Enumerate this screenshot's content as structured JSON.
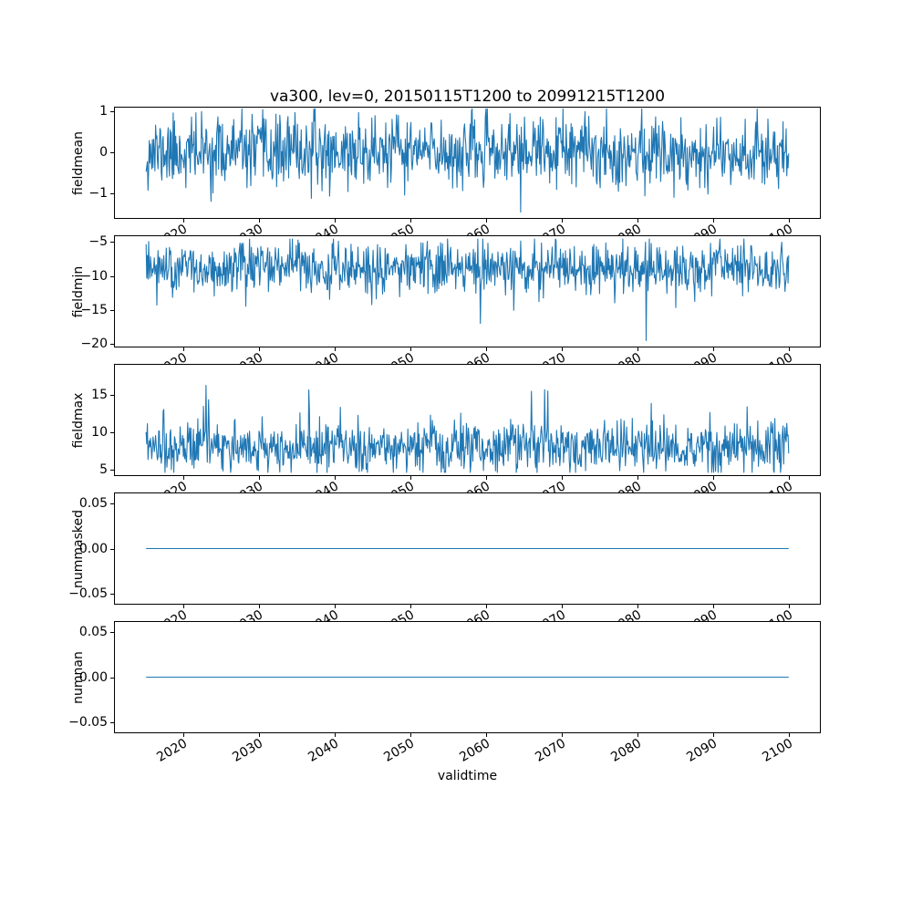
{
  "figure": {
    "title": "va300, lev=0, 20150115T1200 to 20991215T1200",
    "xlabel": "validtime",
    "background_color": "#ffffff",
    "axes_edge_color": "#000000",
    "line_color": "#1f77b4"
  },
  "chart_data": {
    "type": "line",
    "title": "va300, lev=0, 20150115T1200 to 20991215T1200",
    "xlabel": "validtime",
    "grid": false,
    "legend": null,
    "x_start": 2015.042,
    "x_end": 2099.958,
    "x_points": 1020,
    "x_interval_years": 0.0833,
    "xlim": [
      2010.8,
      2104.2
    ],
    "x_ticks": [
      2020,
      2030,
      2040,
      2050,
      2060,
      2070,
      2080,
      2090,
      2100
    ],
    "x_tick_labels": [
      "2020",
      "2030",
      "2040",
      "2050",
      "2060",
      "2070",
      "2080",
      "2090",
      "2100"
    ],
    "subplots": [
      {
        "ylabel": "fieldmean",
        "ylim": [
          -1.62,
          1.1
        ],
        "yticks": [
          1,
          0,
          -1
        ],
        "ytick_labels": [
          "1",
          "0",
          "−1"
        ],
        "series": {
          "kind": "noise",
          "mean": 0.0,
          "sd": 0.42,
          "clip_min": -1.55,
          "clip_max": 1.05,
          "spike_prob": 0,
          "spike_base": 0,
          "spike_range": 0,
          "spike_sign": 1,
          "seed": 11
        }
      },
      {
        "ylabel": "fieldmin",
        "ylim": [
          -20.5,
          -4.0
        ],
        "yticks": [
          -5,
          -10,
          -15,
          -20
        ],
        "ytick_labels": [
          "−5",
          "−10",
          "−15",
          "−20"
        ],
        "series": {
          "kind": "noise",
          "mean": -9.0,
          "sd": 1.85,
          "clip_min": -19.6,
          "clip_max": -4.55,
          "spike_prob": 0.006,
          "spike_base": 2.5,
          "spike_range": 5,
          "spike_sign": -1,
          "seed": 23
        }
      },
      {
        "ylabel": "fieldmax",
        "ylim": [
          4.1,
          19.2
        ],
        "yticks": [
          5,
          10,
          15
        ],
        "ytick_labels": [
          "5",
          "10",
          "15"
        ],
        "series": {
          "kind": "noise",
          "mean": 8.0,
          "sd": 1.75,
          "clip_min": 4.6,
          "clip_max": 18.5,
          "spike_prob": 0.02,
          "spike_base": 2.0,
          "spike_range": 6.0,
          "spike_sign": 1,
          "seed": 37
        }
      },
      {
        "ylabel": "nummasked",
        "ylim": [
          -0.0625,
          0.0625
        ],
        "yticks": [
          0.05,
          0,
          -0.05
        ],
        "ytick_labels": [
          "0.05",
          "0.00",
          "−0.05"
        ],
        "series": {
          "kind": "flat",
          "value": 0.0
        }
      },
      {
        "ylabel": "numnan",
        "ylim": [
          -0.0625,
          0.0625
        ],
        "yticks": [
          0.05,
          0,
          -0.05
        ],
        "ytick_labels": [
          "0.05",
          "0.00",
          "−0.05"
        ],
        "series": {
          "kind": "flat",
          "value": 0.0
        }
      }
    ]
  }
}
